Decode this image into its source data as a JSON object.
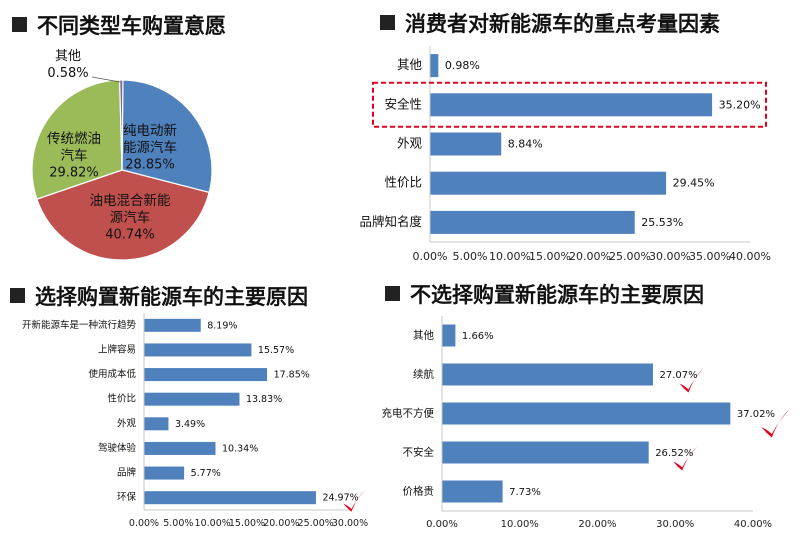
{
  "colors": {
    "bar": "#4f81bd",
    "pie_blue": "#4f81bd",
    "pie_red": "#c0504d",
    "pie_green": "#9bbb59",
    "pie_purple": "#8064a2",
    "highlight": "#e0001b",
    "check": "#e3001b",
    "axis": "#c8c8c8"
  },
  "titles": {
    "pie": "不同类型车购置意愿",
    "factors": "消费者对新能源车的重点考量因素",
    "reasons_buy": "选择购置新能源车的主要原因",
    "reasons_notbuy": "不选择购置新能源车的主要原因"
  },
  "chart_data": [
    {
      "type": "pie",
      "title": "不同类型车购置意愿",
      "slices": [
        {
          "name_lines": [
            "纯电动新",
            "能源汽车"
          ],
          "value": 28.85,
          "label": "28.85%",
          "color": "#4f81bd"
        },
        {
          "name_lines": [
            "油电混合新能",
            "源汽车"
          ],
          "value": 40.74,
          "label": "40.74%",
          "color": "#c0504d"
        },
        {
          "name_lines": [
            "传统燃油",
            "汽车"
          ],
          "value": 29.82,
          "label": "29.82%",
          "color": "#9bbb59"
        },
        {
          "name_lines": [
            "其他"
          ],
          "value": 0.58,
          "label": "0.58%",
          "color": "#8064a2"
        }
      ]
    },
    {
      "type": "bar",
      "orientation": "horizontal",
      "title": "消费者对新能源车的重点考量因素",
      "categories": [
        "其他",
        "安全性",
        "外观",
        "性价比",
        "品牌知名度"
      ],
      "values": [
        0.98,
        35.2,
        8.84,
        29.45,
        25.53
      ],
      "value_labels": [
        "0.98%",
        "35.20%",
        "8.84%",
        "29.45%",
        "25.53%"
      ],
      "xlim": [
        0,
        40
      ],
      "ticks": [
        "0.00%",
        "5.00%",
        "10.00%",
        "15.00%",
        "20.00%",
        "25.00%",
        "30.00%",
        "35.00%",
        "40.00%"
      ],
      "highlighted_category": "安全性"
    },
    {
      "type": "bar",
      "orientation": "horizontal",
      "title": "选择购置新能源车的主要原因",
      "categories": [
        "开新能源车是一种流行趋势",
        "上牌容易",
        "使用成本低",
        "性价比",
        "外观",
        "驾驶体验",
        "品牌",
        "环保"
      ],
      "values": [
        8.19,
        15.57,
        17.85,
        13.83,
        3.49,
        10.34,
        5.77,
        24.97
      ],
      "value_labels": [
        "8.19%",
        "15.57%",
        "17.85%",
        "13.83%",
        "3.49%",
        "10.34%",
        "5.77%",
        "24.97%"
      ],
      "xlim": [
        0,
        30
      ],
      "ticks": [
        "0.00%",
        "5.00%",
        "10.00%",
        "15.00%",
        "20.00%",
        "25.00%",
        "30.00%"
      ],
      "checked_categories": [
        "环保"
      ]
    },
    {
      "type": "bar",
      "orientation": "horizontal",
      "title": "不选择购置新能源车的主要原因",
      "categories": [
        "其他",
        "续航",
        "充电不方便",
        "不安全",
        "价格贵"
      ],
      "values": [
        1.66,
        27.07,
        37.02,
        26.52,
        7.73
      ],
      "value_labels": [
        "1.66%",
        "27.07%",
        "37.02%",
        "26.52%",
        "7.73%"
      ],
      "xlim": [
        0,
        40
      ],
      "ticks": [
        "0.00%",
        "10.00%",
        "20.00%",
        "30.00%",
        "40.00%"
      ],
      "checked_categories": [
        "续航",
        "充电不方便",
        "不安全"
      ]
    }
  ]
}
